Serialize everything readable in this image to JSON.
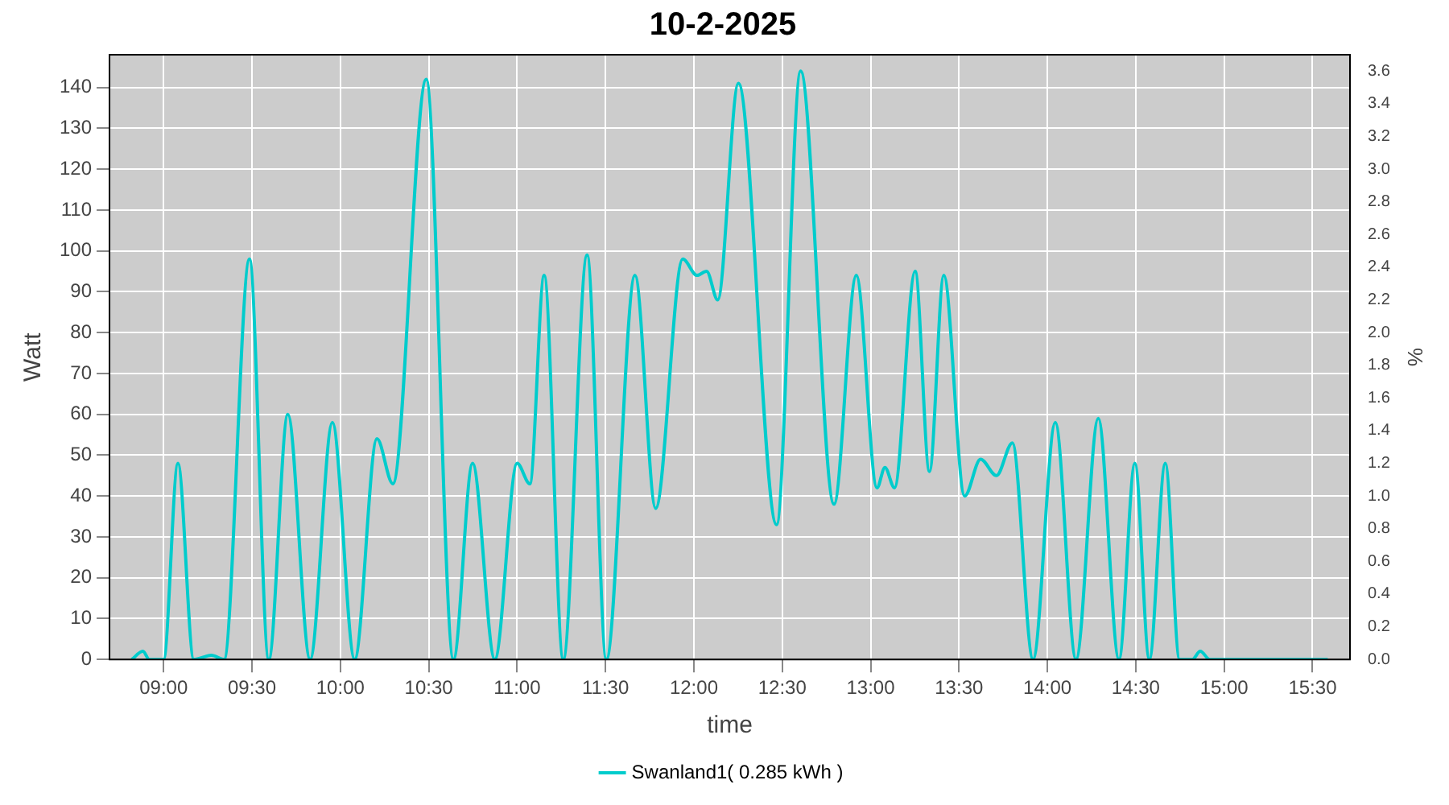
{
  "chart_data": {
    "type": "line",
    "title": "10-2-2025",
    "xlabel": "time",
    "ylabel": "Watt",
    "y2label": "%",
    "x": [
      8.82,
      8.883,
      8.919,
      9.0,
      9.081,
      9.171,
      9.27,
      9.342,
      9.486,
      9.595,
      9.703,
      9.829,
      9.955,
      10.081,
      10.207,
      10.297,
      10.486,
      10.64,
      10.748,
      10.874,
      11.0,
      11.072,
      11.153,
      11.261,
      11.396,
      11.505,
      11.667,
      11.784,
      11.937,
      12.018,
      12.072,
      12.135,
      12.252,
      12.468,
      12.604,
      12.793,
      12.919,
      13.036,
      13.081,
      13.135,
      13.252,
      13.333,
      13.414,
      13.532,
      13.622,
      13.712,
      13.802,
      13.919,
      14.045,
      14.162,
      14.288,
      14.405,
      14.495,
      14.577,
      14.667,
      14.748,
      14.82,
      14.865,
      14.919,
      15.586
    ],
    "series": [
      {
        "name": "Swanland1( 0.285 kWh )",
        "color": "#00cccc",
        "values": [
          0,
          2,
          0,
          0,
          48,
          0,
          1,
          0,
          98,
          0,
          60,
          0,
          58,
          0,
          54,
          43,
          142,
          0,
          48,
          0,
          48,
          43,
          94,
          0,
          99,
          0,
          94,
          37,
          98,
          94,
          95,
          88,
          141,
          33,
          144,
          38,
          94,
          42,
          47,
          42,
          95,
          46,
          94,
          40,
          49,
          45,
          53,
          0,
          58,
          0,
          59,
          0,
          48,
          0,
          48,
          0,
          0,
          2,
          0,
          0
        ]
      }
    ],
    "xlim": [
      8.694,
      15.712
    ],
    "xticks": [
      {
        "value": 9,
        "label": "09:00"
      },
      {
        "value": 9.5,
        "label": "09:30"
      },
      {
        "value": 10,
        "label": "10:00"
      },
      {
        "value": 10.5,
        "label": "10:30"
      },
      {
        "value": 11,
        "label": "11:00"
      },
      {
        "value": 11.5,
        "label": "11:30"
      },
      {
        "value": 12,
        "label": "12:00"
      },
      {
        "value": 12.5,
        "label": "12:30"
      },
      {
        "value": 13,
        "label": "13:00"
      },
      {
        "value": 13.5,
        "label": "13:30"
      },
      {
        "value": 14,
        "label": "14:00"
      },
      {
        "value": 14.5,
        "label": "14:30"
      },
      {
        "value": 15,
        "label": "15:00"
      },
      {
        "value": 15.5,
        "label": "15:30"
      }
    ],
    "ylim": [
      0,
      148
    ],
    "yticks": [
      0,
      10,
      20,
      30,
      40,
      50,
      60,
      70,
      80,
      90,
      100,
      110,
      120,
      130,
      140
    ],
    "y2lim": [
      0,
      3.7
    ],
    "y2ticks": [
      {
        "value": 0,
        "label": "0.0"
      },
      0.2,
      0.4,
      0.6,
      0.8,
      {
        "value": 1,
        "label": "1.0"
      },
      1.2,
      1.4,
      1.6,
      1.8,
      {
        "value": 2,
        "label": "2.0"
      },
      2.2,
      2.4,
      2.6,
      2.8,
      {
        "value": 3,
        "label": "3.0"
      },
      3.2,
      3.4,
      3.6
    ],
    "grid": true,
    "legend": "bottom",
    "marker": "none",
    "line_style": "solid"
  }
}
